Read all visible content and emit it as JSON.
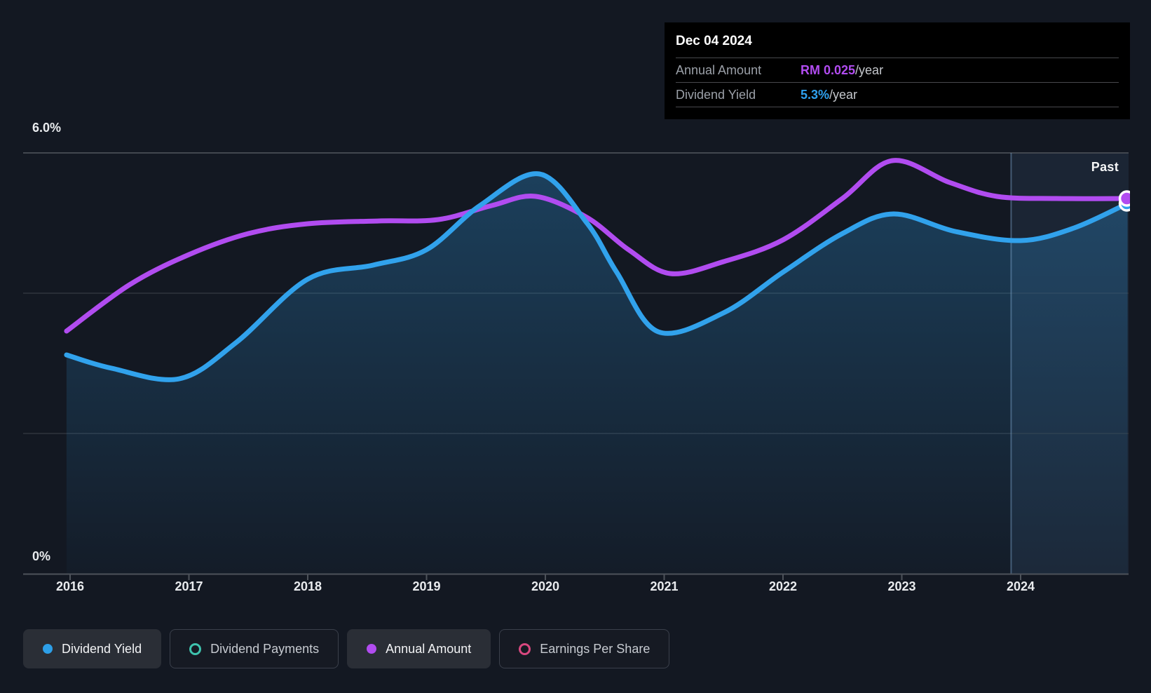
{
  "past_label": "Past",
  "tooltip": {
    "date": "Dec 04 2024",
    "rows": [
      {
        "label": "Annual Amount",
        "value": "RM 0.025",
        "suffix": "/year",
        "color": "#b14cf0"
      },
      {
        "label": "Dividend Yield",
        "value": "5.3%",
        "suffix": "/year",
        "color": "#2fa0ee"
      }
    ]
  },
  "legend": [
    {
      "label": "Dividend Yield",
      "marker": "dot",
      "color": "#2d9fe8",
      "active": true
    },
    {
      "label": "Dividend Payments",
      "marker": "ring",
      "color": "#3ec3ae",
      "active": false
    },
    {
      "label": "Annual Amount",
      "marker": "dot",
      "color": "#b14cf0",
      "active": true
    },
    {
      "label": "Earnings Per Share",
      "marker": "ring",
      "color": "#d8487f",
      "active": false
    }
  ],
  "chart_data": {
    "type": "area",
    "x_axis": {
      "labels": [
        "2016",
        "2017",
        "2018",
        "2019",
        "2020",
        "2021",
        "2022",
        "2023",
        "2024"
      ],
      "range_years": [
        2015.95,
        2024.95
      ]
    },
    "y_axis": {
      "top_label": "6.0%",
      "bottom_label": "0%",
      "range_pct": [
        0,
        6
      ],
      "gridlines_pct": [
        0,
        2,
        4,
        6
      ],
      "grid": true
    },
    "past_region_start_year": 2023.92,
    "legend_position": "bottom",
    "series": [
      {
        "name": "Dividend Yield",
        "unit": "%",
        "color": "#31a2ec",
        "style": "area",
        "end_marker": true,
        "latest": "5.3%/year",
        "points": [
          [
            2015.97,
            3.12
          ],
          [
            2016.35,
            2.93
          ],
          [
            2016.92,
            2.78
          ],
          [
            2017.4,
            3.3
          ],
          [
            2018.0,
            4.2
          ],
          [
            2018.55,
            4.4
          ],
          [
            2019.0,
            4.62
          ],
          [
            2019.45,
            5.25
          ],
          [
            2019.95,
            5.7
          ],
          [
            2020.35,
            5.0
          ],
          [
            2020.6,
            4.3
          ],
          [
            2020.95,
            3.45
          ],
          [
            2021.5,
            3.72
          ],
          [
            2022.0,
            4.3
          ],
          [
            2022.5,
            4.85
          ],
          [
            2022.93,
            5.13
          ],
          [
            2023.45,
            4.88
          ],
          [
            2024.0,
            4.75
          ],
          [
            2024.45,
            4.93
          ],
          [
            2024.9,
            5.28
          ]
        ]
      },
      {
        "name": "Annual Amount",
        "unit": "left-axis-equivalent-pct (own hidden scale)",
        "color": "#b14cf0",
        "style": "line",
        "end_marker": true,
        "latest": "RM 0.025/year",
        "points": [
          [
            2015.97,
            3.46
          ],
          [
            2016.5,
            4.12
          ],
          [
            2017.0,
            4.55
          ],
          [
            2017.5,
            4.85
          ],
          [
            2018.0,
            4.99
          ],
          [
            2018.6,
            5.03
          ],
          [
            2019.1,
            5.05
          ],
          [
            2019.55,
            5.25
          ],
          [
            2019.92,
            5.38
          ],
          [
            2020.35,
            5.08
          ],
          [
            2020.7,
            4.62
          ],
          [
            2021.05,
            4.28
          ],
          [
            2021.5,
            4.45
          ],
          [
            2022.0,
            4.76
          ],
          [
            2022.5,
            5.35
          ],
          [
            2022.92,
            5.89
          ],
          [
            2023.4,
            5.58
          ],
          [
            2023.8,
            5.38
          ],
          [
            2024.3,
            5.35
          ],
          [
            2024.9,
            5.35
          ]
        ]
      }
    ],
    "legend_only_series": [
      "Dividend Payments",
      "Earnings Per Share"
    ]
  },
  "colors": {
    "background": "#131822",
    "grid_top": "#42474f",
    "grid_mid": "#2f343d",
    "axis": "#4d525a",
    "area_fill": "#31a2ec",
    "past_tint": "rgba(100,160,220,0.10)",
    "past_divider": "rgba(125,165,205,0.45)",
    "tooltip_bg": "#000000"
  }
}
